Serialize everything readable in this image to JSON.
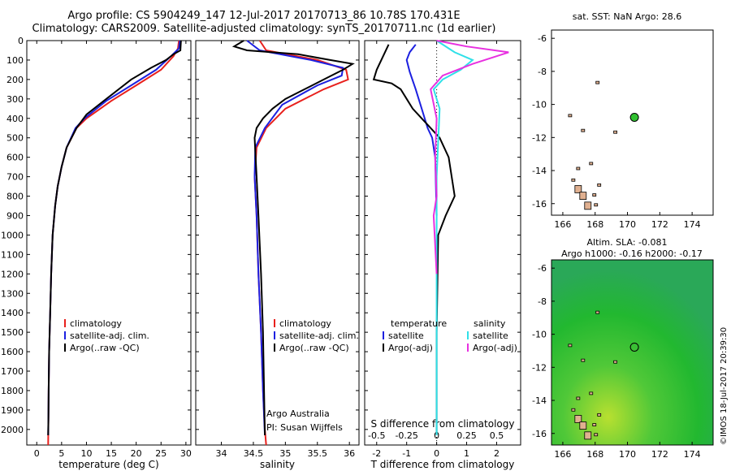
{
  "title": {
    "line1": "Argo profile: CS 5904249_147 12-Jul-2017 20170713_86 10.78S 170.431E",
    "line2": "Climatology: CARS2009. Satellite-adjusted climatology: synTS_20170711.nc (1d earlier)"
  },
  "credit": "Argo Australia",
  "pi": "PI: Susan Wijffels",
  "imos_stamp": "©IMOS 18-Jul-2017 20:39:30",
  "colors": {
    "climatology": "#e8201c",
    "satellite": "#1c20e0",
    "argo": "#000000",
    "sal_satellite": "#30e0e8",
    "sal_argo": "#e830e0",
    "sst_bg": "#ffffff",
    "sla_bg": "#30c030",
    "land": "#e0b090"
  },
  "chart_data": [
    {
      "type": "line",
      "id": "temperature",
      "xlabel": "temperature (deg C)",
      "ylabel": "",
      "xlim": [
        -2,
        31
      ],
      "ylim": [
        2080,
        0
      ],
      "xticks": [
        0,
        5,
        10,
        15,
        20,
        25,
        30
      ],
      "yticks": [
        0,
        100,
        200,
        300,
        400,
        500,
        600,
        700,
        800,
        900,
        1000,
        1100,
        1200,
        1300,
        1400,
        1500,
        1600,
        1700,
        1800,
        1900,
        2000
      ],
      "legend": [
        "climatology",
        "satellite-adj. clim.",
        "Argo(..raw -QC)"
      ],
      "series": [
        {
          "name": "climatology",
          "x": [
            28.6,
            28.4,
            27.5,
            25,
            20,
            15,
            10,
            8,
            6,
            5,
            4.2,
            3.7,
            3.2,
            2.9,
            2.7,
            2.5,
            2.4,
            2.35,
            2.3
          ],
          "y": [
            0,
            40,
            80,
            150,
            230,
            310,
            400,
            450,
            550,
            650,
            750,
            850,
            1000,
            1200,
            1400,
            1600,
            1800,
            1950,
            2080
          ]
        },
        {
          "name": "satellite-adj. clim.",
          "x": [
            28.8,
            28.6,
            27,
            24,
            19,
            14,
            9.6,
            7.8,
            6,
            5,
            4.2,
            3.7,
            3.2,
            2.9,
            2.7,
            2.5,
            2.4,
            2.35,
            2.3
          ],
          "y": [
            0,
            40,
            80,
            150,
            230,
            310,
            400,
            450,
            550,
            650,
            750,
            850,
            1000,
            1200,
            1400,
            1600,
            1800,
            1950,
            2030
          ]
        },
        {
          "name": "Argo(..raw -QC)",
          "x": [
            29,
            28.9,
            27.5,
            26,
            23,
            19,
            14,
            10,
            8,
            6,
            5,
            4.2,
            3.7,
            3.2,
            2.9,
            2.7,
            2.5,
            2.4,
            2.35,
            2.3
          ],
          "y": [
            0,
            50,
            70,
            100,
            140,
            200,
            300,
            380,
            450,
            550,
            650,
            750,
            850,
            1000,
            1200,
            1400,
            1600,
            1800,
            1950,
            2030
          ]
        }
      ]
    },
    {
      "type": "line",
      "id": "salinity",
      "xlabel": "salinity",
      "ylabel": "",
      "xlim": [
        33.6,
        36.15
      ],
      "ylim": [
        2080,
        0
      ],
      "xticks": [
        34,
        34.5,
        35,
        35.5,
        36
      ],
      "legend": [
        "climatology",
        "satellite-adj. clim.",
        "Argo(..raw -QC)"
      ],
      "series": [
        {
          "name": "climatology",
          "x": [
            34.6,
            34.7,
            35.5,
            35.95,
            35.98,
            35.6,
            35.0,
            34.7,
            34.55,
            34.52,
            34.55,
            34.58,
            34.62,
            34.65,
            34.68,
            34.7
          ],
          "y": [
            0,
            50,
            100,
            150,
            200,
            250,
            350,
            450,
            550,
            700,
            900,
            1200,
            1500,
            1800,
            2000,
            2080
          ]
        },
        {
          "name": "satellite-adj. clim.",
          "x": [
            34.4,
            34.6,
            35.4,
            35.9,
            35.88,
            35.5,
            34.95,
            34.68,
            34.53,
            34.52,
            34.55,
            34.58,
            34.62,
            34.65,
            34.68
          ],
          "y": [
            0,
            50,
            100,
            140,
            180,
            230,
            330,
            450,
            550,
            700,
            900,
            1200,
            1500,
            1800,
            2030
          ]
        },
        {
          "name": "Argo(..raw -QC)",
          "x": [
            34.35,
            34.2,
            34.4,
            35.2,
            35.7,
            36.05,
            35.9,
            35.6,
            35.3,
            35.0,
            34.8,
            34.65,
            34.55,
            34.52,
            34.55,
            34.58,
            34.62,
            34.65,
            34.68
          ],
          "y": [
            0,
            30,
            50,
            70,
            100,
            120,
            150,
            200,
            250,
            300,
            350,
            400,
            450,
            500,
            700,
            900,
            1200,
            1500,
            2030
          ]
        }
      ]
    },
    {
      "type": "line",
      "id": "difference",
      "xlabel": "T difference from climatology",
      "xlabel_top": "S difference from climatology",
      "xlim": [
        -2.4,
        2.8
      ],
      "ylim": [
        2080,
        0
      ],
      "xticks": [
        -2,
        -1,
        0,
        1,
        2
      ],
      "xtick_labels_top": [
        "-0.5",
        "-0.25",
        "0",
        "0.25",
        "0.5"
      ],
      "legend_temperature": [
        "temperature",
        "satellite",
        "Argo(-adj)"
      ],
      "legend_salinity": [
        "salinity",
        "satellite",
        "Argo(-adj)"
      ],
      "series": [
        {
          "name": "temperature satellite",
          "x": [
            -0.7,
            -0.9,
            -1.0,
            -0.9,
            -0.7,
            -0.5,
            -0.3,
            -0.15,
            -0.05,
            0
          ],
          "y": [
            20,
            60,
            100,
            160,
            250,
            350,
            450,
            500,
            600,
            900
          ]
        },
        {
          "name": "temperature Argo(-adj)",
          "x": [
            -1.6,
            -2.0,
            -2.1,
            -1.5,
            -1.2,
            -1.0,
            -0.8,
            -0.5,
            -0.2,
            0.1,
            0.4,
            0.6,
            0.3,
            0.05,
            0.0,
            0.0
          ],
          "y": [
            20,
            150,
            200,
            220,
            250,
            300,
            350,
            400,
            450,
            500,
            600,
            800,
            900,
            1000,
            1500,
            2030
          ]
        },
        {
          "name": "salinity satellite",
          "x": [
            0,
            0.6,
            1.2,
            0.8,
            0.2,
            -0.1,
            0.1,
            0.0,
            0.0
          ],
          "y": [
            0,
            60,
            100,
            150,
            200,
            250,
            350,
            700,
            2030
          ]
        },
        {
          "name": "salinity Argo(-adj)",
          "x": [
            0,
            1.0,
            2.4,
            1.2,
            0.2,
            -0.2,
            0.0,
            -0.05,
            0.0,
            -0.1,
            0.0
          ],
          "y": [
            0,
            30,
            60,
            120,
            180,
            250,
            400,
            600,
            800,
            900,
            1200
          ]
        }
      ]
    },
    {
      "type": "scatter",
      "id": "sst_map",
      "title": "sat. SST: NaN Argo: 28.6",
      "xlim": [
        165.3,
        175.3
      ],
      "ylim": [
        -16.7,
        -5.5
      ],
      "xticks": [
        166,
        168,
        170,
        172,
        174
      ],
      "yticks": [
        -6,
        -8,
        -10,
        -12,
        -14,
        -16
      ],
      "points": [
        {
          "x": 170.431,
          "y": -10.78
        }
      ]
    },
    {
      "type": "heatmap",
      "id": "sla_map",
      "title": "Altim. SLA: -0.081",
      "subtitle": "Argo h1000: -0.16 h2000: -0.17",
      "xlim": [
        165.3,
        175.3
      ],
      "ylim": [
        -16.7,
        -5.5
      ],
      "xticks": [
        166,
        168,
        170,
        172,
        174
      ],
      "yticks": [
        -6,
        -8,
        -10,
        -12,
        -14,
        -16
      ],
      "points": [
        {
          "x": 170.431,
          "y": -10.78
        }
      ]
    }
  ]
}
